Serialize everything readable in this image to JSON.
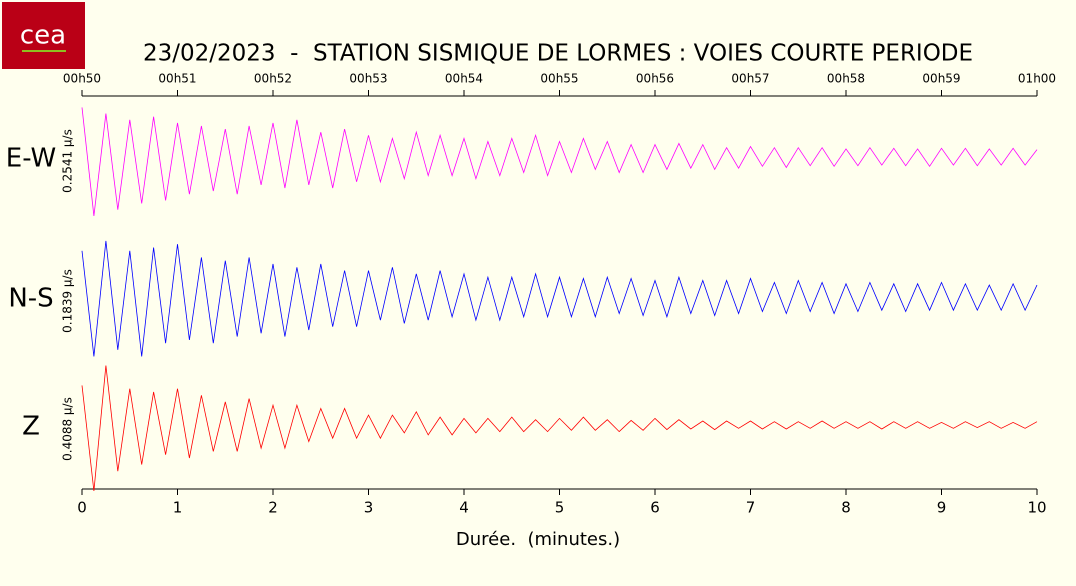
{
  "logo": "cea",
  "chart_data": {
    "type": "line",
    "title": "23/02/2023  -  STATION SISMIQUE DE LORMES : VOIES COURTE PERIODE",
    "xlabel": "Durée.  (minutes.)",
    "xlim": [
      0,
      10
    ],
    "xticks": [
      0,
      1,
      2,
      3,
      4,
      5,
      6,
      7,
      8,
      9,
      10
    ],
    "x2ticks": [
      {
        "value": 0,
        "label": "00h50"
      },
      {
        "value": 1,
        "label": "00h51"
      },
      {
        "value": 2,
        "label": "00h52"
      },
      {
        "value": 3,
        "label": "00h53"
      },
      {
        "value": 4,
        "label": "00h54"
      },
      {
        "value": 5,
        "label": "00h55"
      },
      {
        "value": 6,
        "label": "00h56"
      },
      {
        "value": 7,
        "label": "00h57"
      },
      {
        "value": 8,
        "label": "00h58"
      },
      {
        "value": 9,
        "label": "00h59"
      },
      {
        "value": 10,
        "label": "01h00"
      }
    ],
    "ylim": [
      -1,
      1
    ],
    "x": [
      0,
      0.125,
      0.25,
      0.375,
      0.5,
      0.625,
      0.75,
      0.875,
      1,
      1.125,
      1.25,
      1.375,
      1.5,
      1.625,
      1.75,
      1.875,
      2,
      2.125,
      2.25,
      2.375,
      2.5,
      2.625,
      2.75,
      2.875,
      3,
      3.125,
      3.25,
      3.375,
      3.5,
      3.625,
      3.75,
      3.875,
      4,
      4.125,
      4.25,
      4.375,
      4.5,
      4.625,
      4.75,
      4.875,
      5,
      5.125,
      5.25,
      5.375,
      5.5,
      5.625,
      5.75,
      5.875,
      6,
      6.125,
      6.25,
      6.375,
      6.5,
      6.625,
      6.75,
      6.875,
      7,
      7.125,
      7.25,
      7.375,
      7.5,
      7.625,
      7.75,
      7.875,
      8,
      8.125,
      8.25,
      8.375,
      8.5,
      8.625,
      8.75,
      8.875,
      9,
      9.125,
      9.25,
      9.375,
      9.5,
      9.625,
      9.75,
      9.875,
      10
    ],
    "series": [
      {
        "name": "E-W",
        "scale": "0.2541 µ/s",
        "color": "#ff00ff",
        "values": [
          0.8,
          -0.95,
          0.7,
          -0.85,
          0.6,
          -0.75,
          0.65,
          -0.7,
          0.55,
          -0.6,
          0.5,
          -0.55,
          0.45,
          -0.6,
          0.5,
          -0.45,
          0.55,
          -0.5,
          0.6,
          -0.45,
          0.4,
          -0.5,
          0.45,
          -0.4,
          0.35,
          -0.4,
          0.3,
          -0.35,
          0.4,
          -0.3,
          0.35,
          -0.3,
          0.3,
          -0.35,
          0.25,
          -0.3,
          0.3,
          -0.25,
          0.35,
          -0.3,
          0.25,
          -0.25,
          0.3,
          -0.2,
          0.25,
          -0.25,
          0.2,
          -0.25,
          0.2,
          -0.2,
          0.22,
          -0.18,
          0.2,
          -0.2,
          0.15,
          -0.18,
          0.17,
          -0.15,
          0.15,
          -0.17,
          0.15,
          -0.14,
          0.15,
          -0.15,
          0.13,
          -0.14,
          0.15,
          -0.13,
          0.14,
          -0.14,
          0.13,
          -0.15,
          0.14,
          -0.13,
          0.14,
          -0.14,
          0.13,
          -0.13,
          0.14,
          -0.13,
          0.12
        ]
      },
      {
        "name": "N-S",
        "scale": "0.1839 µ/s",
        "color": "#0000ff",
        "values": [
          0.7,
          -0.9,
          0.85,
          -0.8,
          0.7,
          -0.9,
          0.75,
          -0.7,
          0.8,
          -0.65,
          0.6,
          -0.7,
          0.55,
          -0.6,
          0.6,
          -0.55,
          0.5,
          -0.6,
          0.45,
          -0.5,
          0.5,
          -0.45,
          0.4,
          -0.45,
          0.4,
          -0.35,
          0.45,
          -0.4,
          0.35,
          -0.35,
          0.4,
          -0.3,
          0.35,
          -0.35,
          0.3,
          -0.35,
          0.3,
          -0.3,
          0.35,
          -0.3,
          0.3,
          -0.3,
          0.28,
          -0.3,
          0.3,
          -0.25,
          0.28,
          -0.28,
          0.25,
          -0.3,
          0.3,
          -0.25,
          0.25,
          -0.28,
          0.25,
          -0.25,
          0.28,
          -0.22,
          0.22,
          -0.25,
          0.25,
          -0.22,
          0.22,
          -0.25,
          0.2,
          -0.22,
          0.22,
          -0.2,
          0.2,
          -0.22,
          0.2,
          -0.2,
          0.22,
          -0.2,
          0.2,
          -0.2,
          0.18,
          -0.2,
          0.2,
          -0.2,
          0.18
        ]
      },
      {
        "name": "Z",
        "scale": "0.4088 µ/s",
        "color": "#ff0000",
        "values": [
          0.6,
          -1,
          0.9,
          -0.7,
          0.55,
          -0.6,
          0.5,
          -0.45,
          0.55,
          -0.5,
          0.45,
          -0.4,
          0.35,
          -0.4,
          0.4,
          -0.35,
          0.3,
          -0.35,
          0.3,
          -0.25,
          0.25,
          -0.2,
          0.25,
          -0.2,
          0.15,
          -0.2,
          0.15,
          -0.12,
          0.2,
          -0.15,
          0.12,
          -0.15,
          0.1,
          -0.12,
          0.1,
          -0.1,
          0.12,
          -0.1,
          0.08,
          -0.1,
          0.1,
          -0.08,
          0.12,
          -0.08,
          0.08,
          -0.1,
          0.07,
          -0.08,
          0.1,
          -0.07,
          0.08,
          -0.06,
          0.06,
          -0.07,
          0.06,
          -0.05,
          0.06,
          -0.06,
          0.05,
          -0.06,
          0.05,
          -0.05,
          0.06,
          -0.05,
          0.05,
          -0.05,
          0.05,
          -0.06,
          0.05,
          -0.05,
          0.05,
          -0.05,
          0.04,
          -0.05,
          0.05,
          -0.04,
          0.05,
          -0.05,
          0.04,
          -0.05,
          0.05
        ]
      }
    ]
  }
}
